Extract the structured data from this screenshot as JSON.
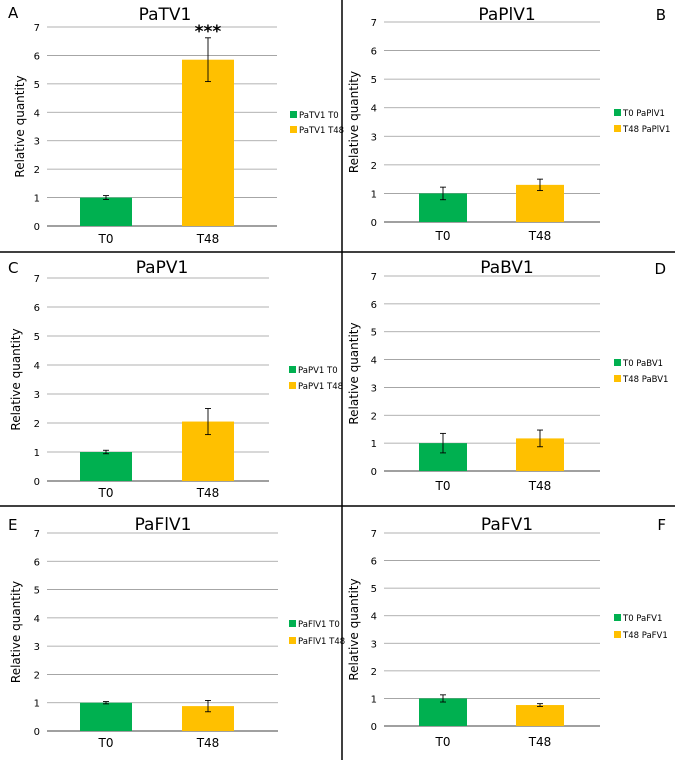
{
  "figure": {
    "colors": {
      "t0": "#00b050",
      "t48": "#ffc000",
      "grid": "#999999",
      "axis": "#000000"
    },
    "panels": [
      {
        "letter": "A",
        "title": "PaTV1",
        "ylabel": "Relative quantity",
        "legend": [
          "PaTV1 T0",
          "PaTV1 T48"
        ]
      },
      {
        "letter": "B",
        "title": "PaPlV1",
        "ylabel": "Relative quantity",
        "legend": [
          "T0 PaPlV1",
          "T48 PaPlV1"
        ]
      },
      {
        "letter": "C",
        "title": "PaPV1",
        "ylabel": "Relative quantity",
        "legend": [
          "PaPV1 T0",
          "PaPV1 T48"
        ]
      },
      {
        "letter": "D",
        "title": "PaBV1",
        "ylabel": "Relative quantity",
        "legend": [
          "T0 PaBV1",
          "T48 PaBV1"
        ]
      },
      {
        "letter": "E",
        "title": "PaFlV1",
        "ylabel": "Relative quantity",
        "legend": [
          "PaFlV1 T0",
          "PaFlV1 T48"
        ]
      },
      {
        "letter": "F",
        "title": "PaFV1",
        "ylabel": "Relative quantity",
        "legend": [
          "T0 PaFV1",
          "T48 PaFV1"
        ]
      }
    ]
  },
  "chart_data": [
    {
      "type": "bar",
      "title": "PaTV1",
      "xlabel": "",
      "ylabel": "Relative quantity",
      "categories": [
        "T0",
        "T48"
      ],
      "values": [
        1.0,
        5.85
      ],
      "errors": [
        0.07,
        0.77
      ],
      "annotation": "***",
      "ylim": [
        0,
        7
      ],
      "yticks": [
        0,
        1,
        2,
        3,
        4,
        5,
        6,
        7
      ],
      "grid": true,
      "legend": "right"
    },
    {
      "type": "bar",
      "title": "PaPlV1",
      "xlabel": "",
      "ylabel": "Relative quantity",
      "categories": [
        "T0",
        "T48"
      ],
      "values": [
        1.0,
        1.3
      ],
      "errors": [
        0.22,
        0.2
      ],
      "annotation": "",
      "ylim": [
        0,
        7
      ],
      "yticks": [
        0,
        1,
        2,
        3,
        4,
        5,
        6,
        7
      ],
      "grid": true,
      "legend": "right"
    },
    {
      "type": "bar",
      "title": "PaPV1",
      "xlabel": "",
      "ylabel": "Relative quantity",
      "categories": [
        "T0",
        "T48"
      ],
      "values": [
        1.0,
        2.05
      ],
      "errors": [
        0.06,
        0.45
      ],
      "annotation": "",
      "ylim": [
        0,
        7
      ],
      "yticks": [
        0,
        1,
        2,
        3,
        4,
        5,
        6,
        7
      ],
      "grid": true,
      "legend": "right"
    },
    {
      "type": "bar",
      "title": "PaBV1",
      "xlabel": "",
      "ylabel": "Relative quantity",
      "categories": [
        "T0",
        "T48"
      ],
      "values": [
        1.0,
        1.17
      ],
      "errors": [
        0.35,
        0.3
      ],
      "annotation": "",
      "ylim": [
        0,
        7
      ],
      "yticks": [
        0,
        1,
        2,
        3,
        4,
        5,
        6,
        7
      ],
      "grid": true,
      "legend": "right"
    },
    {
      "type": "bar",
      "title": "PaFlV1",
      "xlabel": "",
      "ylabel": "Relative quantity",
      "categories": [
        "T0",
        "T48"
      ],
      "values": [
        1.0,
        0.88
      ],
      "errors": [
        0.04,
        0.2
      ],
      "annotation": "",
      "ylim": [
        0,
        7
      ],
      "yticks": [
        0,
        1,
        2,
        3,
        4,
        5,
        6,
        7
      ],
      "grid": true,
      "legend": "right"
    },
    {
      "type": "bar",
      "title": "PaFV1",
      "xlabel": "",
      "ylabel": "Relative quantity",
      "categories": [
        "T0",
        "T48"
      ],
      "values": [
        1.0,
        0.76
      ],
      "errors": [
        0.13,
        0.05
      ],
      "annotation": "",
      "ylim": [
        0,
        7
      ],
      "yticks": [
        0,
        1,
        2,
        3,
        4,
        5,
        6,
        7
      ],
      "grid": true,
      "legend": "right"
    }
  ]
}
